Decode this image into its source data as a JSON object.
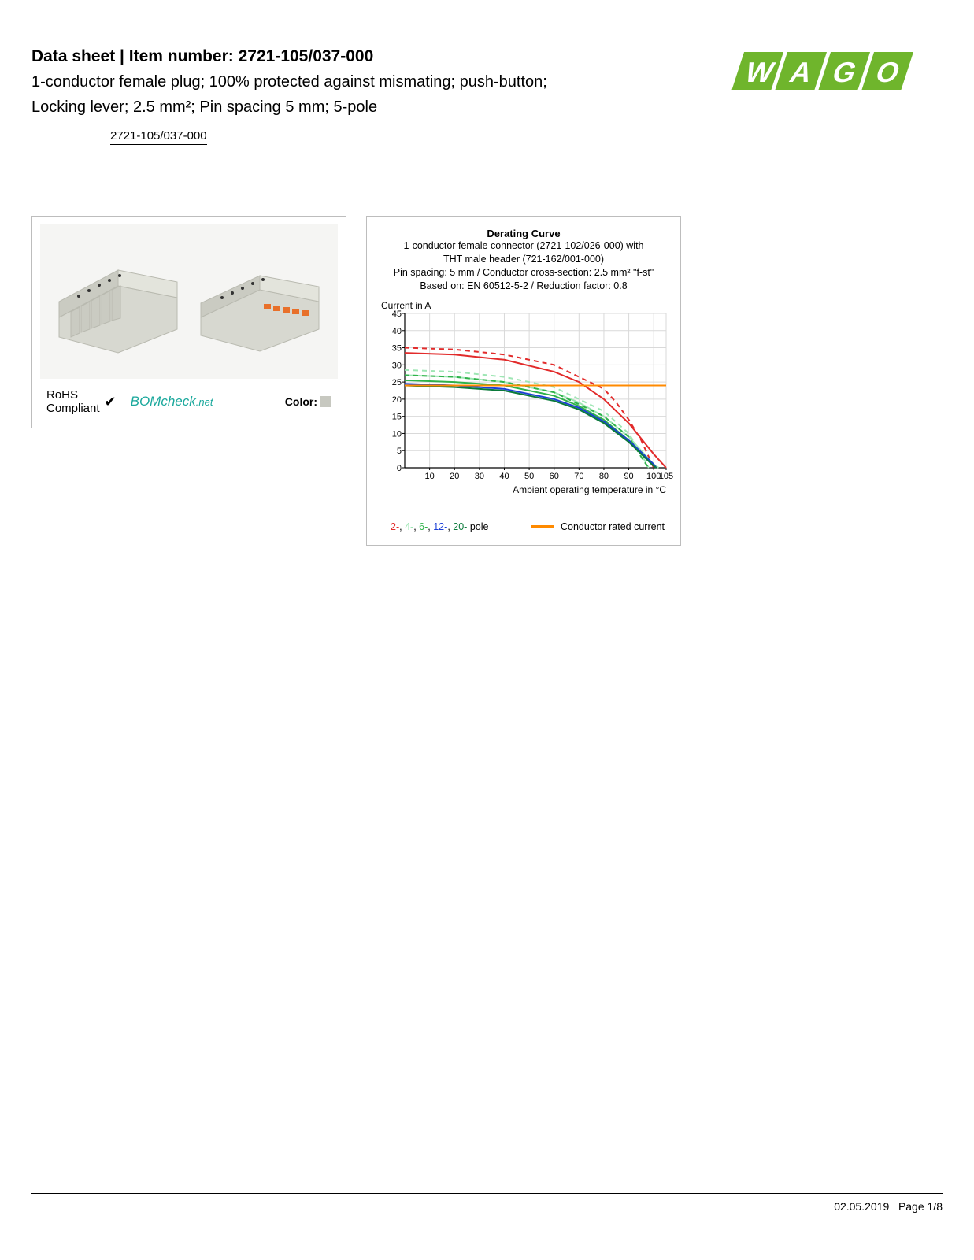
{
  "header": {
    "title_prefix": "Data sheet  |  Item number: ",
    "item_number": "2721-105/037-000",
    "subtitle_line1": "1-conductor female plug; 100% protected against mismating; push-button;",
    "subtitle_line2": "Locking lever; 2.5 mm²; Pin spacing 5 mm; 5-pole",
    "breadcrumb": "2721-105/037-000"
  },
  "logo": {
    "name": "WAGO",
    "color": "#6fb52c",
    "text_color": "#ffffff"
  },
  "compliance": {
    "rohs_line1": "RoHS",
    "rohs_line2": "Compliant",
    "bomcheck_text": "BOMcheck",
    "bomcheck_suffix": ".net",
    "color_label": "Color:",
    "color_swatch": "#c7c8c0"
  },
  "product_image": {
    "body_color": "#d7d8d0",
    "accent_color": "#e8702a",
    "shadow_color": "#b9bab0"
  },
  "chart": {
    "title": "Derating Curve",
    "sub1": "1-conductor female connector (2721-102/026-000) with",
    "sub2": "THT male header (721-162/001-000)",
    "sub3": "Pin spacing: 5 mm / Conductor cross-section: 2.5 mm²  \"f-st\"",
    "sub4": "Based on: EN 60512-5-2 / Reduction factor: 0.8",
    "y_label": "Current in A",
    "x_label": "Ambient operating temperature in °C",
    "x_ticks": [
      10,
      20,
      30,
      40,
      50,
      60,
      70,
      80,
      90,
      100,
      105
    ],
    "y_ticks": [
      0,
      5,
      10,
      15,
      20,
      25,
      30,
      35,
      40,
      45
    ],
    "x_lim": [
      0,
      105
    ],
    "y_lim": [
      0,
      45
    ],
    "background": "#ffffff",
    "grid_color": "#d9d9d9",
    "axis_color": "#000000",
    "tick_fontsize": 11,
    "label_fontsize": 12,
    "title_fontsize": 13,
    "series": [
      {
        "name": "2-pole-solid",
        "color": "#e22b2b",
        "dash": "none",
        "width": 2,
        "points": [
          [
            0,
            33.5
          ],
          [
            20,
            33
          ],
          [
            40,
            31.5
          ],
          [
            60,
            28
          ],
          [
            70,
            25
          ],
          [
            80,
            20
          ],
          [
            90,
            13
          ],
          [
            100,
            4
          ],
          [
            105,
            0
          ]
        ]
      },
      {
        "name": "2-pole-dash",
        "color": "#e22b2b",
        "dash": "6,5",
        "width": 2,
        "points": [
          [
            0,
            35
          ],
          [
            20,
            34.5
          ],
          [
            40,
            33
          ],
          [
            60,
            30
          ],
          [
            80,
            23
          ],
          [
            85,
            19
          ],
          [
            90,
            14
          ],
          [
            95,
            8
          ],
          [
            100,
            0
          ]
        ]
      },
      {
        "name": "4-pole-solid",
        "color": "#9ee6b4",
        "dash": "none",
        "width": 2,
        "points": [
          [
            0,
            27
          ],
          [
            20,
            26.5
          ],
          [
            40,
            25
          ],
          [
            60,
            22
          ],
          [
            70,
            19
          ],
          [
            80,
            15
          ],
          [
            90,
            9
          ],
          [
            100,
            1
          ],
          [
            102,
            0
          ]
        ]
      },
      {
        "name": "4-pole-dash",
        "color": "#9ee6b4",
        "dash": "6,5",
        "width": 2,
        "points": [
          [
            0,
            28.5
          ],
          [
            20,
            28
          ],
          [
            40,
            26.5
          ],
          [
            60,
            23.5
          ],
          [
            80,
            16.5
          ],
          [
            90,
            10
          ],
          [
            95,
            4
          ],
          [
            98,
            0
          ]
        ]
      },
      {
        "name": "6-pole-solid",
        "color": "#2fb24a",
        "dash": "none",
        "width": 2,
        "points": [
          [
            0,
            25.5
          ],
          [
            20,
            25
          ],
          [
            40,
            24
          ],
          [
            60,
            21
          ],
          [
            70,
            18
          ],
          [
            80,
            14
          ],
          [
            90,
            8
          ],
          [
            100,
            1
          ],
          [
            101,
            0
          ]
        ]
      },
      {
        "name": "6-pole-dash",
        "color": "#2fb24a",
        "dash": "6,5",
        "width": 2,
        "points": [
          [
            0,
            27
          ],
          [
            20,
            26.5
          ],
          [
            40,
            25
          ],
          [
            60,
            22
          ],
          [
            80,
            15
          ],
          [
            90,
            9
          ],
          [
            96,
            2
          ],
          [
            98,
            0
          ]
        ]
      },
      {
        "name": "12-pole-solid",
        "color": "#1b3fd6",
        "dash": "none",
        "width": 2,
        "points": [
          [
            0,
            24.5
          ],
          [
            20,
            24
          ],
          [
            40,
            23
          ],
          [
            60,
            20
          ],
          [
            70,
            17.5
          ],
          [
            80,
            13.5
          ],
          [
            90,
            8
          ],
          [
            100,
            1
          ],
          [
            101,
            0
          ]
        ]
      },
      {
        "name": "20-pole-solid",
        "color": "#0a7a3a",
        "dash": "none",
        "width": 2,
        "points": [
          [
            0,
            24
          ],
          [
            20,
            23.5
          ],
          [
            40,
            22.5
          ],
          [
            60,
            19.5
          ],
          [
            70,
            17
          ],
          [
            80,
            13
          ],
          [
            90,
            7.5
          ],
          [
            100,
            0.5
          ],
          [
            101,
            0
          ]
        ]
      },
      {
        "name": "rated-current",
        "color": "#ff8a00",
        "dash": "none",
        "width": 2,
        "points": [
          [
            0,
            24
          ],
          [
            105,
            24
          ]
        ]
      }
    ],
    "legend": {
      "items": [
        {
          "label": "2-",
          "color": "#e22b2b"
        },
        {
          "label": "4-",
          "color": "#9ee6b4"
        },
        {
          "label": "6-",
          "color": "#2fb24a"
        },
        {
          "label": "12-",
          "color": "#1b3fd6"
        },
        {
          "label": "20-",
          "color": "#0a7a3a"
        }
      ],
      "suffix": " pole",
      "separator": ", ",
      "rated_label": "Conductor rated current",
      "rated_color": "#ff8a00"
    }
  },
  "footer": {
    "date": "02.05.2019",
    "page": "Page 1/8"
  }
}
